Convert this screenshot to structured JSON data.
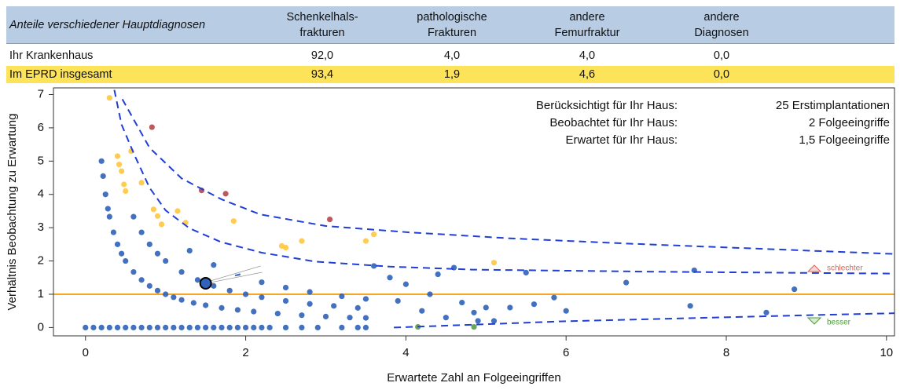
{
  "table": {
    "header": [
      "Anteile verschiedener Hauptdiagnosen",
      [
        "Schenkelhals-",
        "frakturen"
      ],
      [
        "pathologische",
        "Frakturen"
      ],
      [
        "andere",
        "Femurfraktur"
      ],
      [
        "andere",
        "Diagnosen"
      ]
    ],
    "rows": [
      [
        "Ihr Krankenhaus",
        "92,0",
        "4,0",
        "4,0",
        "0,0"
      ],
      [
        "Im EPRD insgesamt",
        "93,4",
        "1,9",
        "4,6",
        "0,0"
      ]
    ]
  },
  "chart_data": {
    "type": "scatter",
    "xlabel": "Erwartete Zahl an Folgeeingriffen",
    "ylabel": "Verhältnis Beobachtung zu Erwartung",
    "xlim": [
      -0.4,
      10.1
    ],
    "ylim": [
      -0.25,
      7.2
    ],
    "xticks": [
      0,
      2,
      4,
      6,
      8,
      10
    ],
    "yticks": [
      0,
      1,
      2,
      3,
      4,
      5,
      6,
      7
    ],
    "series": [
      {
        "color": "#2f62b8",
        "x": [
          0,
          0.1,
          0.2,
          0.3,
          0.4,
          0.5,
          0.6,
          0.7,
          0.8,
          0.9,
          1.0,
          1.1,
          1.2,
          1.3,
          1.4,
          1.5,
          1.6,
          1.7,
          1.8,
          1.9,
          2.0,
          2.1,
          2.2,
          2.3,
          2.5,
          2.7,
          2.9,
          3.2,
          3.4,
          3.5,
          0.2,
          0.22,
          0.25,
          0.28,
          0.3,
          0.35,
          0.4,
          0.45,
          0.5,
          0.6,
          0.7,
          0.8,
          0.9,
          1.0,
          1.1,
          1.2,
          1.35,
          1.5,
          1.7,
          1.9,
          2.1,
          2.4,
          2.7,
          3.0,
          3.3,
          3.5,
          0.6,
          0.7,
          0.8,
          0.9,
          1.0,
          1.2,
          1.4,
          1.6,
          1.8,
          2.0,
          2.2,
          2.5,
          2.8,
          3.1,
          3.4,
          1.3,
          1.6,
          1.9,
          2.2,
          2.5,
          2.8,
          3.2,
          3.5,
          3.6,
          3.8,
          3.9,
          4.0,
          4.2,
          4.3,
          4.4,
          4.5,
          4.6,
          4.7,
          4.85,
          4.9,
          5.0,
          5.1,
          5.3,
          5.5,
          5.6,
          5.85,
          6.0,
          6.75,
          7.55,
          7.6,
          8.5,
          8.85
        ],
        "values": [
          0,
          0,
          0,
          0,
          0,
          0,
          0,
          0,
          0,
          0,
          0,
          0,
          0,
          0,
          0,
          0,
          0,
          0,
          0,
          0,
          0,
          0,
          0,
          0,
          0,
          0,
          0,
          0,
          0,
          0,
          5.0,
          4.55,
          4.0,
          3.57,
          3.33,
          2.86,
          2.5,
          2.22,
          2.0,
          1.67,
          1.43,
          1.25,
          1.11,
          1.0,
          0.91,
          0.83,
          0.74,
          0.67,
          0.59,
          0.53,
          0.48,
          0.42,
          0.37,
          0.33,
          0.3,
          0.29,
          3.33,
          2.86,
          2.5,
          2.22,
          2.0,
          1.67,
          1.43,
          1.25,
          1.11,
          1.0,
          0.91,
          0.8,
          0.71,
          0.65,
          0.59,
          2.31,
          1.88,
          1.58,
          1.36,
          1.2,
          1.07,
          0.94,
          0.86,
          1.85,
          1.5,
          0.8,
          1.3,
          0.5,
          1.0,
          1.6,
          0.3,
          1.8,
          0.75,
          0.45,
          0.2,
          0.6,
          0.2,
          0.6,
          1.65,
          0.7,
          0.9,
          0.5,
          1.35,
          0.65,
          1.72,
          0.45,
          1.15
        ]
      },
      {
        "color": "#ffc640",
        "x": [
          0.3,
          0.4,
          0.42,
          0.45,
          0.48,
          0.5,
          0.57,
          0.7,
          0.85,
          0.9,
          0.95,
          1.15,
          1.25,
          1.85,
          2.45,
          2.5,
          2.7,
          3.5,
          3.6,
          5.1
        ],
        "values": [
          6.9,
          5.15,
          4.9,
          4.7,
          4.3,
          4.1,
          5.3,
          4.35,
          3.55,
          3.35,
          3.1,
          3.5,
          3.15,
          3.2,
          2.45,
          2.4,
          2.6,
          2.6,
          2.8,
          1.95
        ]
      },
      {
        "color": "#b5474b",
        "x": [
          0.83,
          1.45,
          1.75,
          3.05
        ],
        "values": [
          6.02,
          4.12,
          4.02,
          3.25
        ]
      },
      {
        "color": "#5a9a46",
        "x": [
          4.15,
          4.85
        ],
        "values": [
          0.02,
          0.02
        ]
      }
    ],
    "highlight": {
      "x": 1.5,
      "value": 1.33
    },
    "hline": {
      "value": 1,
      "color": "#f5a623"
    },
    "curves": [
      {
        "color": "#1f3fd6",
        "x": [
          0.46,
          0.8,
          1.2,
          1.7,
          2.18,
          3.0,
          4.04,
          5.3,
          6.79,
          8.5,
          10.1
        ],
        "values": [
          6.86,
          5.4,
          4.48,
          3.85,
          3.4,
          3.05,
          2.86,
          2.68,
          2.52,
          2.36,
          2.21
        ]
      },
      {
        "color": "#1f3fd6",
        "x": [
          0.36,
          0.45,
          0.61,
          0.8,
          1.0,
          1.3,
          1.69,
          2.2,
          2.87,
          3.8,
          4.83,
          7.0,
          10.1
        ],
        "values": [
          7.14,
          6.1,
          5.19,
          4.2,
          3.52,
          2.98,
          2.57,
          2.25,
          1.98,
          1.83,
          1.74,
          1.68,
          1.62
        ]
      },
      {
        "color": "#1f3fd6",
        "x": [
          3.85,
          5.0,
          6.0,
          7.5,
          9.0,
          10.1
        ],
        "values": [
          0,
          0.1,
          0.19,
          0.28,
          0.37,
          0.43
        ]
      }
    ],
    "annotations": [
      {
        "label": "Berücksichtigt für Ihr Haus:",
        "value": "25 Erstimplantationen"
      },
      {
        "label": "Beobachtet für Ihr Haus:",
        "value": "2 Folgeeingriffe"
      },
      {
        "label": "Erwartet für Ihr Haus:",
        "value": "1,5 Folgeeingriffe"
      }
    ],
    "worse_label": "schlechter",
    "better_label": "besser"
  }
}
